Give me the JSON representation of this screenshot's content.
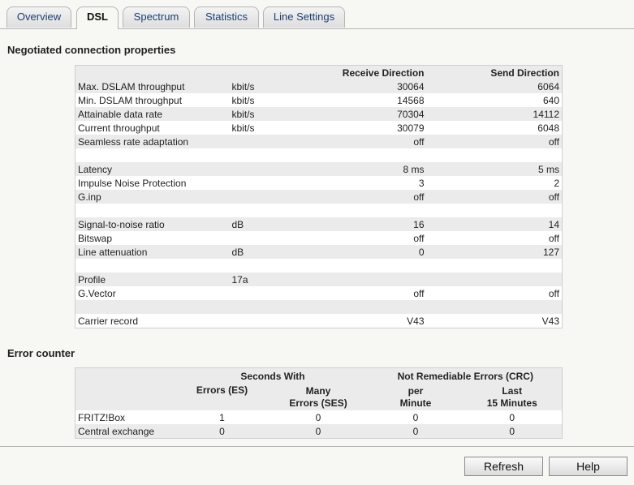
{
  "tabs": [
    {
      "label": "Overview"
    },
    {
      "label": "DSL"
    },
    {
      "label": "Spectrum"
    },
    {
      "label": "Statistics"
    },
    {
      "label": "Line Settings"
    }
  ],
  "active_tab": "DSL",
  "negotiated": {
    "title": "Negotiated connection properties",
    "col_receive": "Receive Direction",
    "col_send": "Send Direction",
    "rows": [
      {
        "label": "Max. DSLAM throughput",
        "unit": "kbit/s",
        "rx": "30064",
        "tx": "6064"
      },
      {
        "label": "Min. DSLAM throughput",
        "unit": "kbit/s",
        "rx": "14568",
        "tx": "640"
      },
      {
        "label": "Attainable data rate",
        "unit": "kbit/s",
        "rx": "70304",
        "tx": "14112"
      },
      {
        "label": "Current throughput",
        "unit": "kbit/s",
        "rx": "30079",
        "tx": "6048"
      },
      {
        "label": "Seamless rate adaptation",
        "unit": "",
        "rx": "off",
        "tx": "off"
      },
      {
        "label": "",
        "unit": "",
        "rx": "",
        "tx": ""
      },
      {
        "label": "Latency",
        "unit": "",
        "rx": "8 ms",
        "tx": "5 ms"
      },
      {
        "label": "Impulse Noise Protection",
        "unit": "",
        "rx": "3",
        "tx": "2"
      },
      {
        "label": "G.inp",
        "unit": "",
        "rx": "off",
        "tx": "off"
      },
      {
        "label": "",
        "unit": "",
        "rx": "",
        "tx": ""
      },
      {
        "label": "Signal-to-noise ratio",
        "unit": "dB",
        "rx": "16",
        "tx": "14"
      },
      {
        "label": "Bitswap",
        "unit": "",
        "rx": "off",
        "tx": "off"
      },
      {
        "label": "Line attenuation",
        "unit": "dB",
        "rx": "0",
        "tx": "127"
      },
      {
        "label": "",
        "unit": "",
        "rx": "",
        "tx": ""
      },
      {
        "label": "Profile",
        "unit": "17a",
        "rx": "",
        "tx": ""
      },
      {
        "label": "G.Vector",
        "unit": "",
        "rx": "off",
        "tx": "off"
      },
      {
        "label": "",
        "unit": "",
        "rx": "",
        "tx": ""
      },
      {
        "label": "Carrier record",
        "unit": "",
        "rx": "V43",
        "tx": "V43"
      }
    ]
  },
  "errors": {
    "title": "Error counter",
    "group_seconds": "Seconds With",
    "group_crc": "Not Remediable Errors (CRC)",
    "col_es": "Errors (ES)",
    "col_ses_line1": "Many",
    "col_ses_line2": "Errors (SES)",
    "col_min_line1": "per",
    "col_min_line2": "Minute",
    "col_15_line1": "Last",
    "col_15_line2": "15 Minutes",
    "rows": [
      {
        "label": "FRITZ!Box",
        "es": "1",
        "ses": "0",
        "per_min": "0",
        "last15": "0"
      },
      {
        "label": "Central exchange",
        "es": "0",
        "ses": "0",
        "per_min": "0",
        "last15": "0"
      }
    ]
  },
  "buttons": {
    "refresh": "Refresh",
    "help": "Help"
  }
}
